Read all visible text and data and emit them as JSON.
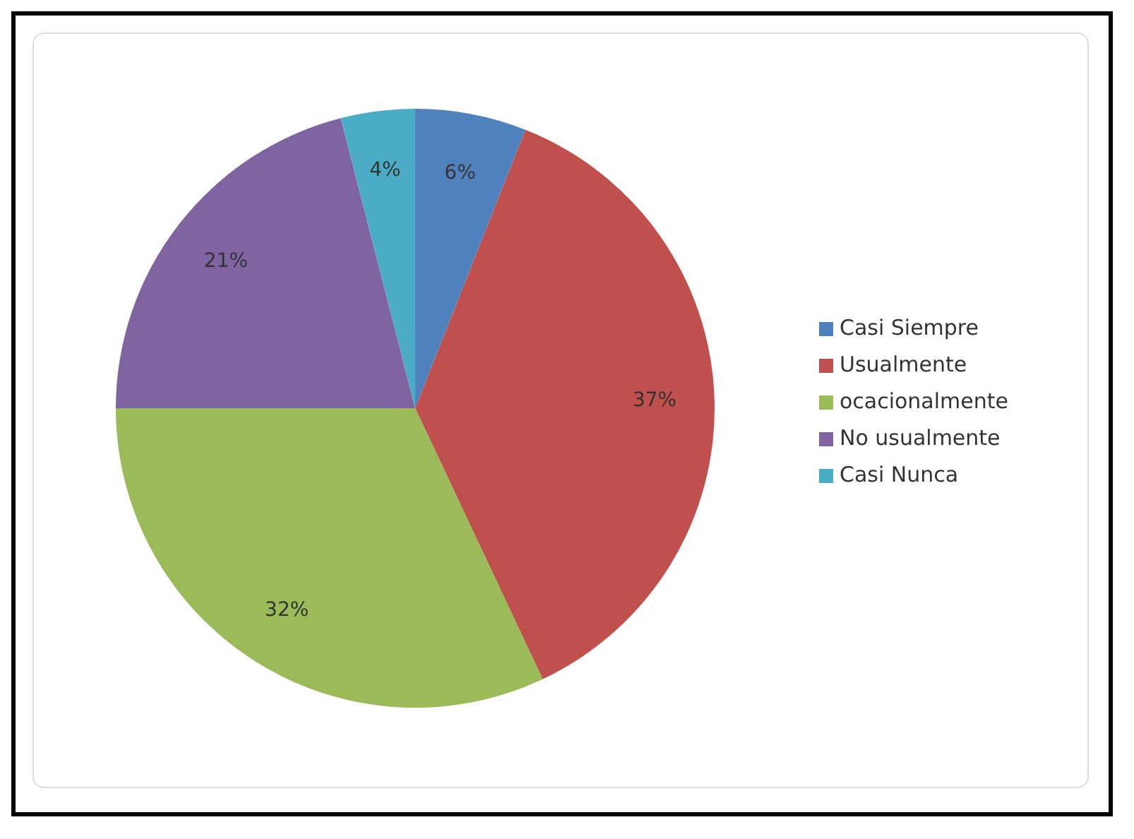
{
  "chart_data": {
    "type": "pie",
    "categories": [
      "Casi Siempre",
      "Usualmente",
      "ocacionalmente",
      "No usualmente",
      "Casi Nunca"
    ],
    "values": [
      6,
      37,
      32,
      21,
      4
    ],
    "colors": [
      "#4f81bd",
      "#c0504d",
      "#9bbb59",
      "#8064a2",
      "#4bacc6"
    ],
    "value_labels": [
      "6%",
      "37%",
      "32%",
      "21%",
      "4%"
    ],
    "legend": "right"
  }
}
